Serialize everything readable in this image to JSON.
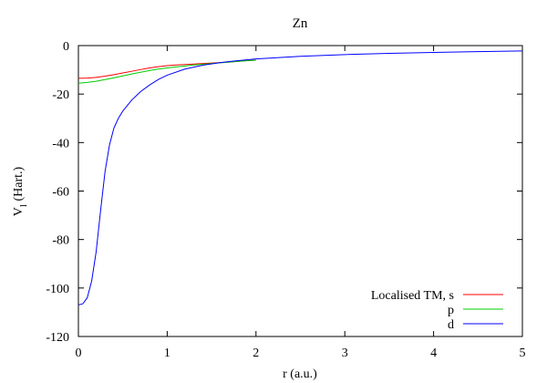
{
  "chart_data": {
    "type": "line",
    "title": "Zn",
    "xlabel": "r (a.u.)",
    "ylabel_main": "V",
    "ylabel_sub": "l",
    "ylabel_suffix": " (Hart.)",
    "xlim": [
      0,
      5
    ],
    "ylim": [
      -120,
      0
    ],
    "xticks": [
      0,
      1,
      2,
      3,
      4,
      5
    ],
    "yticks": [
      0,
      -20,
      -40,
      -60,
      -80,
      -100,
      -120
    ],
    "x_tick_labels": [
      "0",
      "1",
      "2",
      "3",
      "4",
      "5"
    ],
    "y_tick_labels": [
      "0",
      "-20",
      "-40",
      "-60",
      "-80",
      "-100",
      "-120"
    ],
    "grid": false,
    "legend_position": "bottom-right",
    "series": [
      {
        "name": "Localised TM, s",
        "color": "#ff0000",
        "x": [
          0.0,
          0.1,
          0.2,
          0.3,
          0.4,
          0.5,
          0.6,
          0.7,
          0.8,
          0.9,
          1.0,
          1.1,
          1.2,
          1.3,
          1.4,
          1.5,
          1.6,
          1.7,
          1.8,
          1.9,
          2.0
        ],
        "y": [
          -13.5,
          -13.4,
          -13.1,
          -12.6,
          -12.0,
          -11.3,
          -10.6,
          -9.9,
          -9.2,
          -8.7,
          -8.3,
          -8.0,
          -7.8,
          -7.6,
          -7.4,
          -7.2,
          -7.0,
          -6.8,
          -6.5,
          -6.2,
          -6.0
        ]
      },
      {
        "name": "p",
        "color": "#00cc00",
        "x": [
          0.0,
          0.1,
          0.2,
          0.3,
          0.4,
          0.5,
          0.6,
          0.7,
          0.8,
          0.9,
          1.0,
          1.1,
          1.2,
          1.3,
          1.4,
          1.5,
          1.6,
          1.7,
          1.8,
          1.9,
          2.0
        ],
        "y": [
          -15.5,
          -15.2,
          -14.7,
          -14.0,
          -13.3,
          -12.5,
          -11.7,
          -11.0,
          -10.3,
          -9.7,
          -9.2,
          -8.8,
          -8.4,
          -8.0,
          -7.7,
          -7.4,
          -7.1,
          -6.8,
          -6.5,
          -6.2,
          -6.0
        ]
      },
      {
        "name": "d",
        "color": "#0000ff",
        "x": [
          0.0,
          0.05,
          0.1,
          0.15,
          0.2,
          0.25,
          0.3,
          0.35,
          0.4,
          0.45,
          0.5,
          0.6,
          0.7,
          0.8,
          0.9,
          1.0,
          1.2,
          1.4,
          1.6,
          1.8,
          2.0,
          2.5,
          3.0,
          3.5,
          4.0,
          4.5,
          5.0
        ],
        "y": [
          -107.0,
          -106.5,
          -104.0,
          -97.0,
          -85.0,
          -68.0,
          -52.0,
          -41.0,
          -34.0,
          -30.0,
          -27.0,
          -22.5,
          -19.0,
          -16.3,
          -14.0,
          -12.2,
          -9.7,
          -8.1,
          -7.0,
          -6.2,
          -5.5,
          -4.4,
          -3.7,
          -3.2,
          -2.8,
          -2.5,
          -2.2
        ]
      }
    ]
  }
}
